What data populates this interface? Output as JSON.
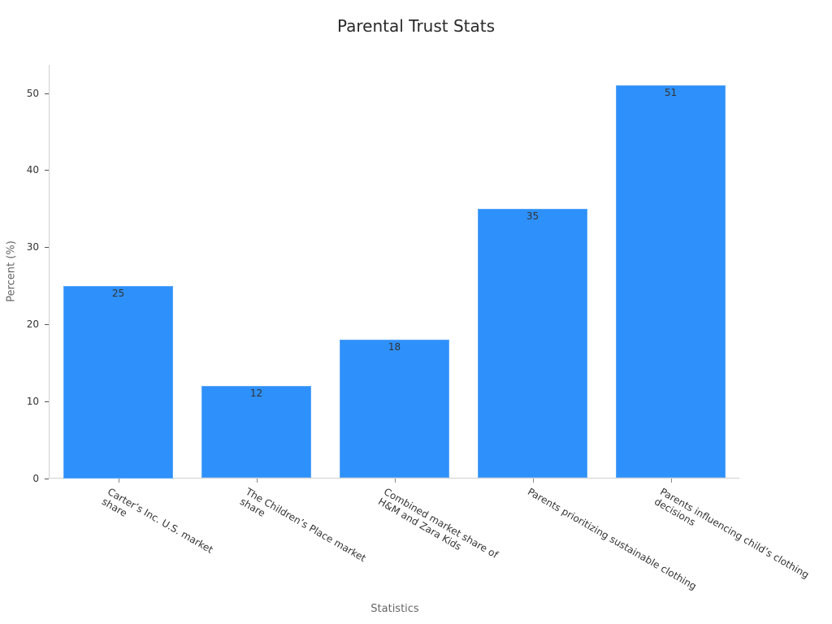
{
  "chart_data": {
    "type": "bar",
    "title": "Parental Trust Stats",
    "xlabel": "Statistics",
    "ylabel": "Percent (%)",
    "categories": [
      "Carter's Inc. U.S. market share",
      "The Children's Place market share",
      "Combined market share of H&M and Zara Kids",
      "Parents prioritizing sustainable clothing",
      "Parents influencing child's clothing decisions"
    ],
    "values": [
      25,
      12,
      18,
      35,
      51
    ],
    "ylim": [
      0,
      53.5
    ],
    "yticks": [
      0,
      10,
      20,
      30,
      40,
      50
    ],
    "grid": false,
    "legend": null,
    "bar_color": "#2e90fa",
    "data_labels": true
  },
  "display": {
    "tick_labels": [
      "Carter’s Inc. U.S. market\nshare",
      "The Children’s Place market\nshare",
      "Combined market share of\nH&M and Zara Kids",
      "Parents prioritizing sustainable clothing",
      "Parents influencing child’s clothing\ndecisions"
    ]
  }
}
